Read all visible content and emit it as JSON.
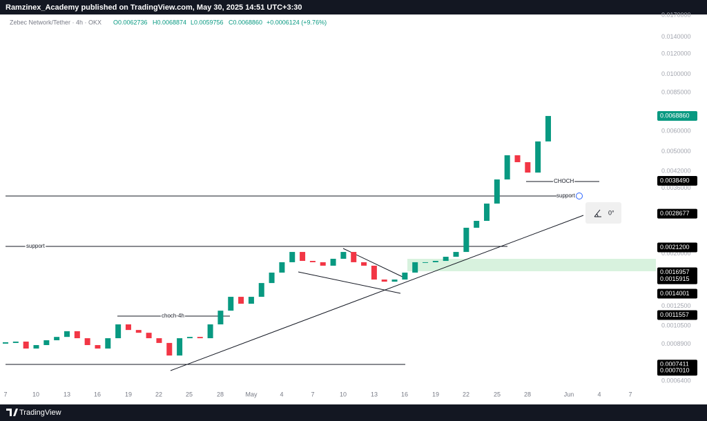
{
  "header": {
    "title": "Ramzinex_Academy published on TradingView.com, May 30, 2025 14:51 UTC+3:30"
  },
  "legend": {
    "symbol": "Zebec Network/Tether · 4h · OKX",
    "open": "O0.0062736",
    "high": "H0.0068874",
    "low": "L0.0059756",
    "close": "C0.0068860",
    "change": "+0.0006124 (+9.76%)"
  },
  "chart_data": {
    "type": "candlestick",
    "scale": "log",
    "color_up": "#089981",
    "color_down": "#f23645",
    "values": [
      0.0009,
      0.000911,
      0.000856,
      0.000883,
      0.000922,
      0.00095,
      0.001,
      0.000939,
      0.000883,
      0.000856,
      0.000939,
      0.001063,
      0.001011,
      0.000986,
      0.000939,
      0.0009,
      0.000804,
      0.000939,
      0.00095,
      0.000939,
      0.001063,
      0.001202,
      0.001361,
      0.001279,
      0.001361,
      0.00154,
      0.001691,
      0.001856,
      0.002035,
      0.001878,
      0.001856,
      0.001799,
      0.001914,
      0.002035,
      0.001856,
      0.001799,
      0.001589,
      0.001559,
      0.001589,
      0.001691,
      0.001856,
      0.001856,
      0.001878,
      0.001949,
      0.002035,
      0.002528,
      0.002689,
      0.00314,
      0.003898,
      0.004842,
      0.004551,
      0.004146,
      0.005481,
      0.006886
    ],
    "ylim": [
      0.00064,
      0.017
    ],
    "yticks": [
      {
        "value": 0.017,
        "label": "0.0170000"
      },
      {
        "value": 0.014,
        "label": "0.0140000"
      },
      {
        "value": 0.012,
        "label": "0.0120000"
      },
      {
        "value": 0.01,
        "label": "0.0100000"
      },
      {
        "value": 0.0085,
        "label": "0.0085000"
      },
      {
        "value": 0.006,
        "label": "0.0060000"
      },
      {
        "value": 0.005,
        "label": "0.0050000"
      },
      {
        "value": 0.0042,
        "label": "0.0042000"
      },
      {
        "value": 0.0036,
        "label": "0.0036000"
      },
      {
        "value": 0.002,
        "label": "0.0020000"
      },
      {
        "value": 0.00125,
        "label": "0.0012500"
      },
      {
        "value": 0.00105,
        "label": "0.0010500"
      },
      {
        "value": 0.00089,
        "label": "0.0008900"
      },
      {
        "value": 0.00064,
        "label": "0.0006400"
      }
    ],
    "price_labels": [
      {
        "value": 0.006886,
        "label": "0.0068860",
        "color": "#089981"
      },
      {
        "value": 0.003849,
        "label": "0.0038490",
        "color": "#000000"
      },
      {
        "value": 0.0028677,
        "label": "0.0028677",
        "color": "#000000"
      },
      {
        "value": 0.00212,
        "label": "0.0021200",
        "color": "#000000"
      },
      {
        "value": 0.0016957,
        "label": "0.0016957",
        "color": "#000000"
      },
      {
        "value": 0.0015915,
        "label": "0.0015915",
        "color": "#000000"
      },
      {
        "value": 0.0014001,
        "label": "0.0014001",
        "color": "#000000"
      },
      {
        "value": 0.0011557,
        "label": "0.0011557",
        "color": "#000000"
      },
      {
        "value": 0.0007411,
        "label": "0.0007411",
        "color": "#000000"
      },
      {
        "value": 0.000701,
        "label": "0.0007010",
        "color": "#000000"
      }
    ],
    "x_labels": [
      "7",
      "10",
      "13",
      "16",
      "19",
      "22",
      "25",
      "28",
      "May",
      "4",
      "7",
      "10",
      "13",
      "16",
      "19",
      "22",
      "25",
      "28",
      "Jun",
      "4",
      "7"
    ]
  },
  "drawings": {
    "support_low": "support",
    "support_high": "support",
    "choch_4h": "choch-4h",
    "choch": "CHOCH",
    "angle": "0°"
  },
  "footer": {
    "brand": "TradingView"
  }
}
